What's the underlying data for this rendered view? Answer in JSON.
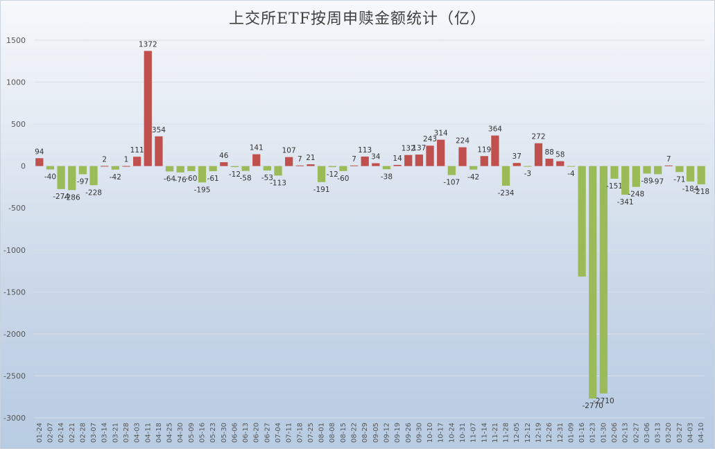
{
  "title": "上交所ETF按周申赎金额统计（亿）",
  "colors": {
    "positive": "#c0504d",
    "negative": "#9bbb59",
    "grid": "#d8dfe8"
  },
  "chart_data": {
    "type": "bar",
    "title": "上交所ETF按周申赎金额统计（亿）",
    "xlabel": "",
    "ylabel": "",
    "ylim": [
      -3000,
      1500
    ],
    "yticks": [
      1500,
      1000,
      500,
      0,
      -500,
      -1000,
      -1500,
      -2000,
      -2500,
      -3000
    ],
    "grid": true,
    "legend": "none",
    "categories": [
      "01-24",
      "02-07",
      "02-14",
      "02-21",
      "02-28",
      "03-07",
      "03-14",
      "03-21",
      "03-28",
      "04-03",
      "04-11",
      "04-18",
      "04-25",
      "04-30",
      "05-09",
      "05-16",
      "05-23",
      "05-30",
      "06-06",
      "06-13",
      "06-20",
      "06-27",
      "07-04",
      "07-11",
      "07-18",
      "07-25",
      "08-01",
      "08-08",
      "08-15",
      "08-22",
      "08-29",
      "09-05",
      "09-12",
      "09-19",
      "09-26",
      "09-30",
      "10-10",
      "10-17",
      "10-24",
      "10-31",
      "11-07",
      "11-14",
      "11-21",
      "11-28",
      "12-05",
      "12-12",
      "12-19",
      "12-26",
      "12-31",
      "01-09",
      "01-16",
      "01-23",
      "01-30",
      "02-06",
      "02-13",
      "02-27",
      "03-06",
      "03-13",
      "03-20",
      "03-27",
      "04-03",
      "04-10"
    ],
    "values": [
      94,
      -40,
      -274,
      -286,
      -97,
      -228,
      2,
      -42,
      1,
      111,
      1372,
      354,
      -64,
      -76,
      -60,
      -195,
      -61,
      46,
      -12,
      -58,
      141,
      -53,
      -113,
      107,
      7,
      21,
      -191,
      -12,
      -60,
      7,
      113,
      34,
      -38,
      14,
      132,
      137,
      243,
      314,
      -107,
      224,
      -42,
      119,
      364,
      -234,
      37,
      -3,
      272,
      88,
      58,
      -4,
      -1317,
      -2770,
      -2710,
      -151,
      -341,
      -248,
      -89,
      -97,
      7,
      -71,
      -184,
      -218
    ],
    "label_hidden_indices": [
      50
    ]
  }
}
